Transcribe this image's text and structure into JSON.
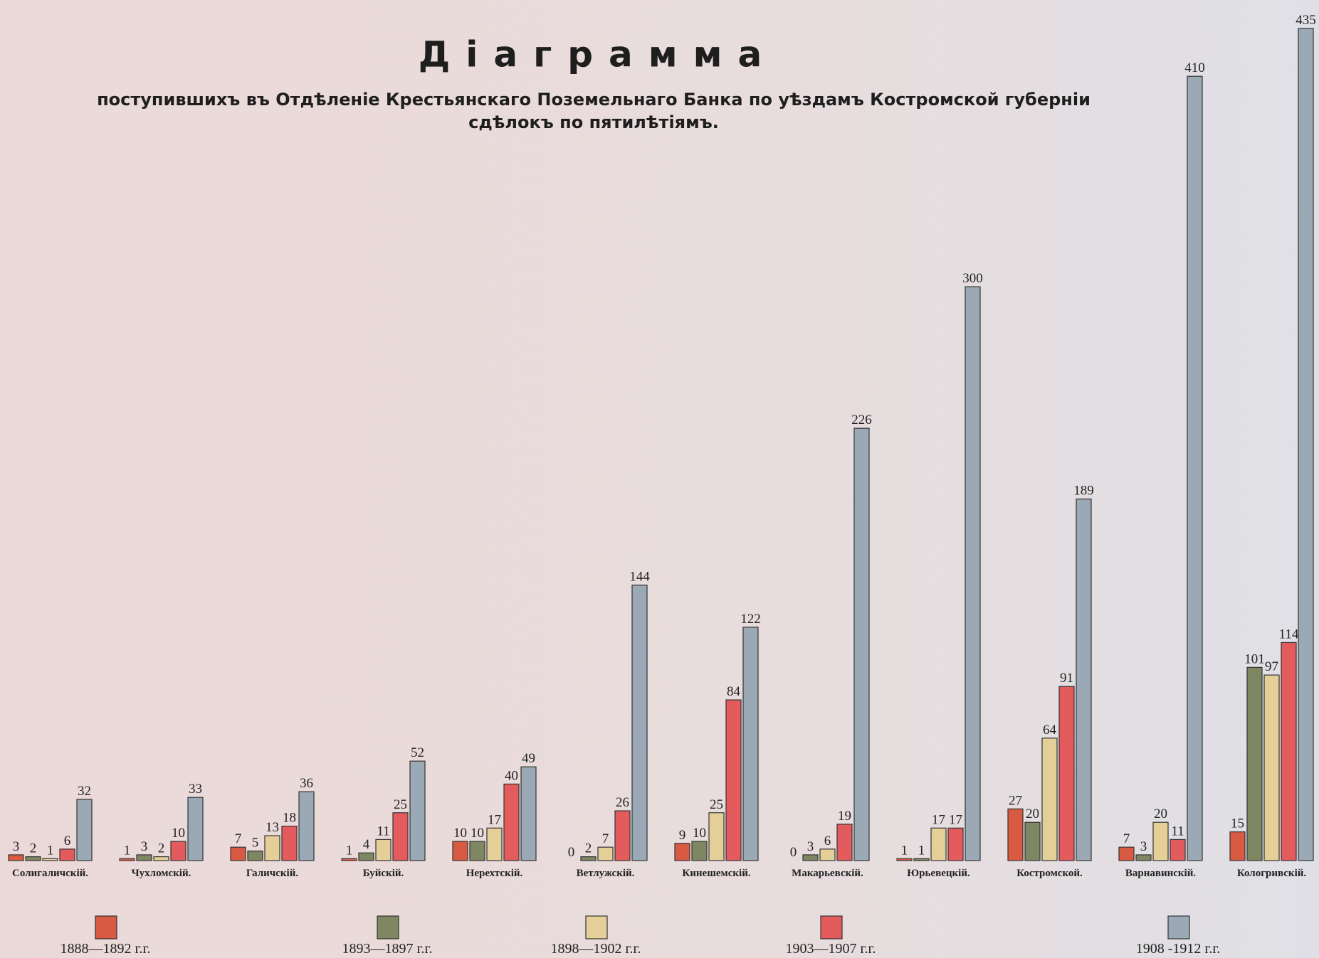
{
  "chart_data": {
    "type": "bar",
    "title": "Діаграмма",
    "subtitle": [
      "поступившихъ въ Отдѣленіе Крестьянскаго Поземельнаго Банка по уѣздамъ Костромской губерніи",
      "сдѣлокъ по пятилѣтіямъ."
    ],
    "categories": [
      "Солигаличскій.",
      "Чухломскій.",
      "Галичскій.",
      "Буйскій.",
      "Нерехтскій.",
      "Ветлужскій.",
      "Кинешемскій.",
      "Макарьевскій.",
      "Юрьевецкій.",
      "Костромской.",
      "Варнавинскій.",
      "Кологривскій."
    ],
    "series": [
      {
        "name": "1888—1892 г.г.",
        "color": "#d95a43",
        "values": [
          3,
          1,
          7,
          1,
          10,
          0,
          9,
          0,
          1,
          27,
          7,
          15
        ]
      },
      {
        "name": "1893—1897 г.г.",
        "color": "#7f8662",
        "values": [
          2,
          3,
          5,
          4,
          10,
          2,
          10,
          3,
          1,
          20,
          3,
          101
        ]
      },
      {
        "name": "1898—1902 г.г.",
        "color": "#e4cf98",
        "values": [
          1,
          2,
          13,
          11,
          17,
          7,
          25,
          6,
          17,
          64,
          20,
          97
        ]
      },
      {
        "name": "1903—1907 г.г.",
        "color": "#e35b5d",
        "values": [
          6,
          10,
          18,
          25,
          40,
          26,
          84,
          19,
          17,
          91,
          11,
          114
        ]
      },
      {
        "name": "1908 -1912 г.г.",
        "color": "#9aa9b5",
        "values": [
          32,
          33,
          36,
          52,
          49,
          144,
          122,
          226,
          300,
          189,
          410,
          435
        ]
      }
    ]
  }
}
